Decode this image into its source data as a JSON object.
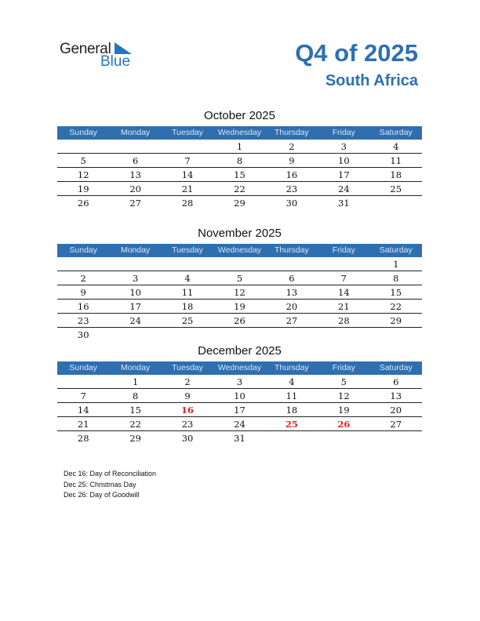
{
  "logo": {
    "text1": "General",
    "text2": "Blue"
  },
  "header": {
    "title": "Q4 of 2025",
    "country": "South Africa"
  },
  "colors": {
    "accent": "#2f6fb0",
    "holiday": "#e02020"
  },
  "weekdays": [
    "Sunday",
    "Monday",
    "Tuesday",
    "Wednesday",
    "Thursday",
    "Friday",
    "Saturday"
  ],
  "months": [
    {
      "title": "October 2025",
      "weeks": [
        [
          "",
          "",
          "",
          "1",
          "2",
          "3",
          "4"
        ],
        [
          "5",
          "6",
          "7",
          "8",
          "9",
          "10",
          "11"
        ],
        [
          "12",
          "13",
          "14",
          "15",
          "16",
          "17",
          "18"
        ],
        [
          "19",
          "20",
          "21",
          "22",
          "23",
          "24",
          "25"
        ],
        [
          "26",
          "27",
          "28",
          "29",
          "30",
          "31",
          ""
        ]
      ],
      "holidays": []
    },
    {
      "title": "November 2025",
      "weeks": [
        [
          "",
          "",
          "",
          "",
          "",
          "",
          "1"
        ],
        [
          "2",
          "3",
          "4",
          "5",
          "6",
          "7",
          "8"
        ],
        [
          "9",
          "10",
          "11",
          "12",
          "13",
          "14",
          "15"
        ],
        [
          "16",
          "17",
          "18",
          "19",
          "20",
          "21",
          "22"
        ],
        [
          "23",
          "24",
          "25",
          "26",
          "27",
          "28",
          "29"
        ],
        [
          "30",
          "",
          "",
          "",
          "",
          "",
          ""
        ]
      ],
      "holidays": []
    },
    {
      "title": "December 2025",
      "weeks": [
        [
          "",
          "1",
          "2",
          "3",
          "4",
          "5",
          "6"
        ],
        [
          "7",
          "8",
          "9",
          "10",
          "11",
          "12",
          "13"
        ],
        [
          "14",
          "15",
          "16",
          "17",
          "18",
          "19",
          "20"
        ],
        [
          "21",
          "22",
          "23",
          "24",
          "25",
          "26",
          "27"
        ],
        [
          "28",
          "29",
          "30",
          "31",
          "",
          "",
          ""
        ]
      ],
      "holidays": [
        "16",
        "25",
        "26"
      ]
    }
  ],
  "notes": [
    "Dec 16: Day of Reconciliation",
    "Dec 25: Christmas Day",
    "Dec 26: Day of Goodwill"
  ]
}
